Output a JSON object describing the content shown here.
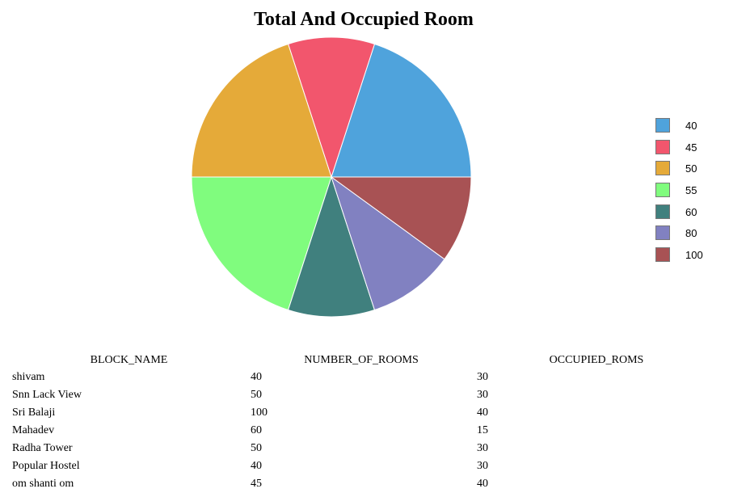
{
  "chart_data": {
    "type": "pie",
    "title": "Total And Occupied Room",
    "slices": [
      {
        "label": "40",
        "value": 2,
        "color": "#4fa3dc"
      },
      {
        "label": "45",
        "value": 1,
        "color": "#f2566d"
      },
      {
        "label": "50",
        "value": 2,
        "color": "#e5aa39"
      },
      {
        "label": "55",
        "value": 2,
        "color": "#80fc7e"
      },
      {
        "label": "60",
        "value": 1,
        "color": "#40807e"
      },
      {
        "label": "80",
        "value": 1,
        "color": "#8181c1"
      },
      {
        "label": "100",
        "value": 1,
        "color": "#a85254"
      }
    ],
    "legend_position": "right"
  },
  "table": {
    "headers": [
      "BLOCK_NAME",
      "NUMBER_OF_ROOMS",
      "OCCUPIED_ROMS"
    ],
    "rows": [
      [
        "shivam",
        "40",
        "30"
      ],
      [
        "Snn Lack View",
        "50",
        "30"
      ],
      [
        "Sri Balaji",
        "100",
        "40"
      ],
      [
        "Mahadev",
        "60",
        "15"
      ],
      [
        "Radha Tower",
        "50",
        "30"
      ],
      [
        "Popular Hostel",
        "40",
        "30"
      ],
      [
        "om shanti om",
        "45",
        "40"
      ]
    ]
  }
}
